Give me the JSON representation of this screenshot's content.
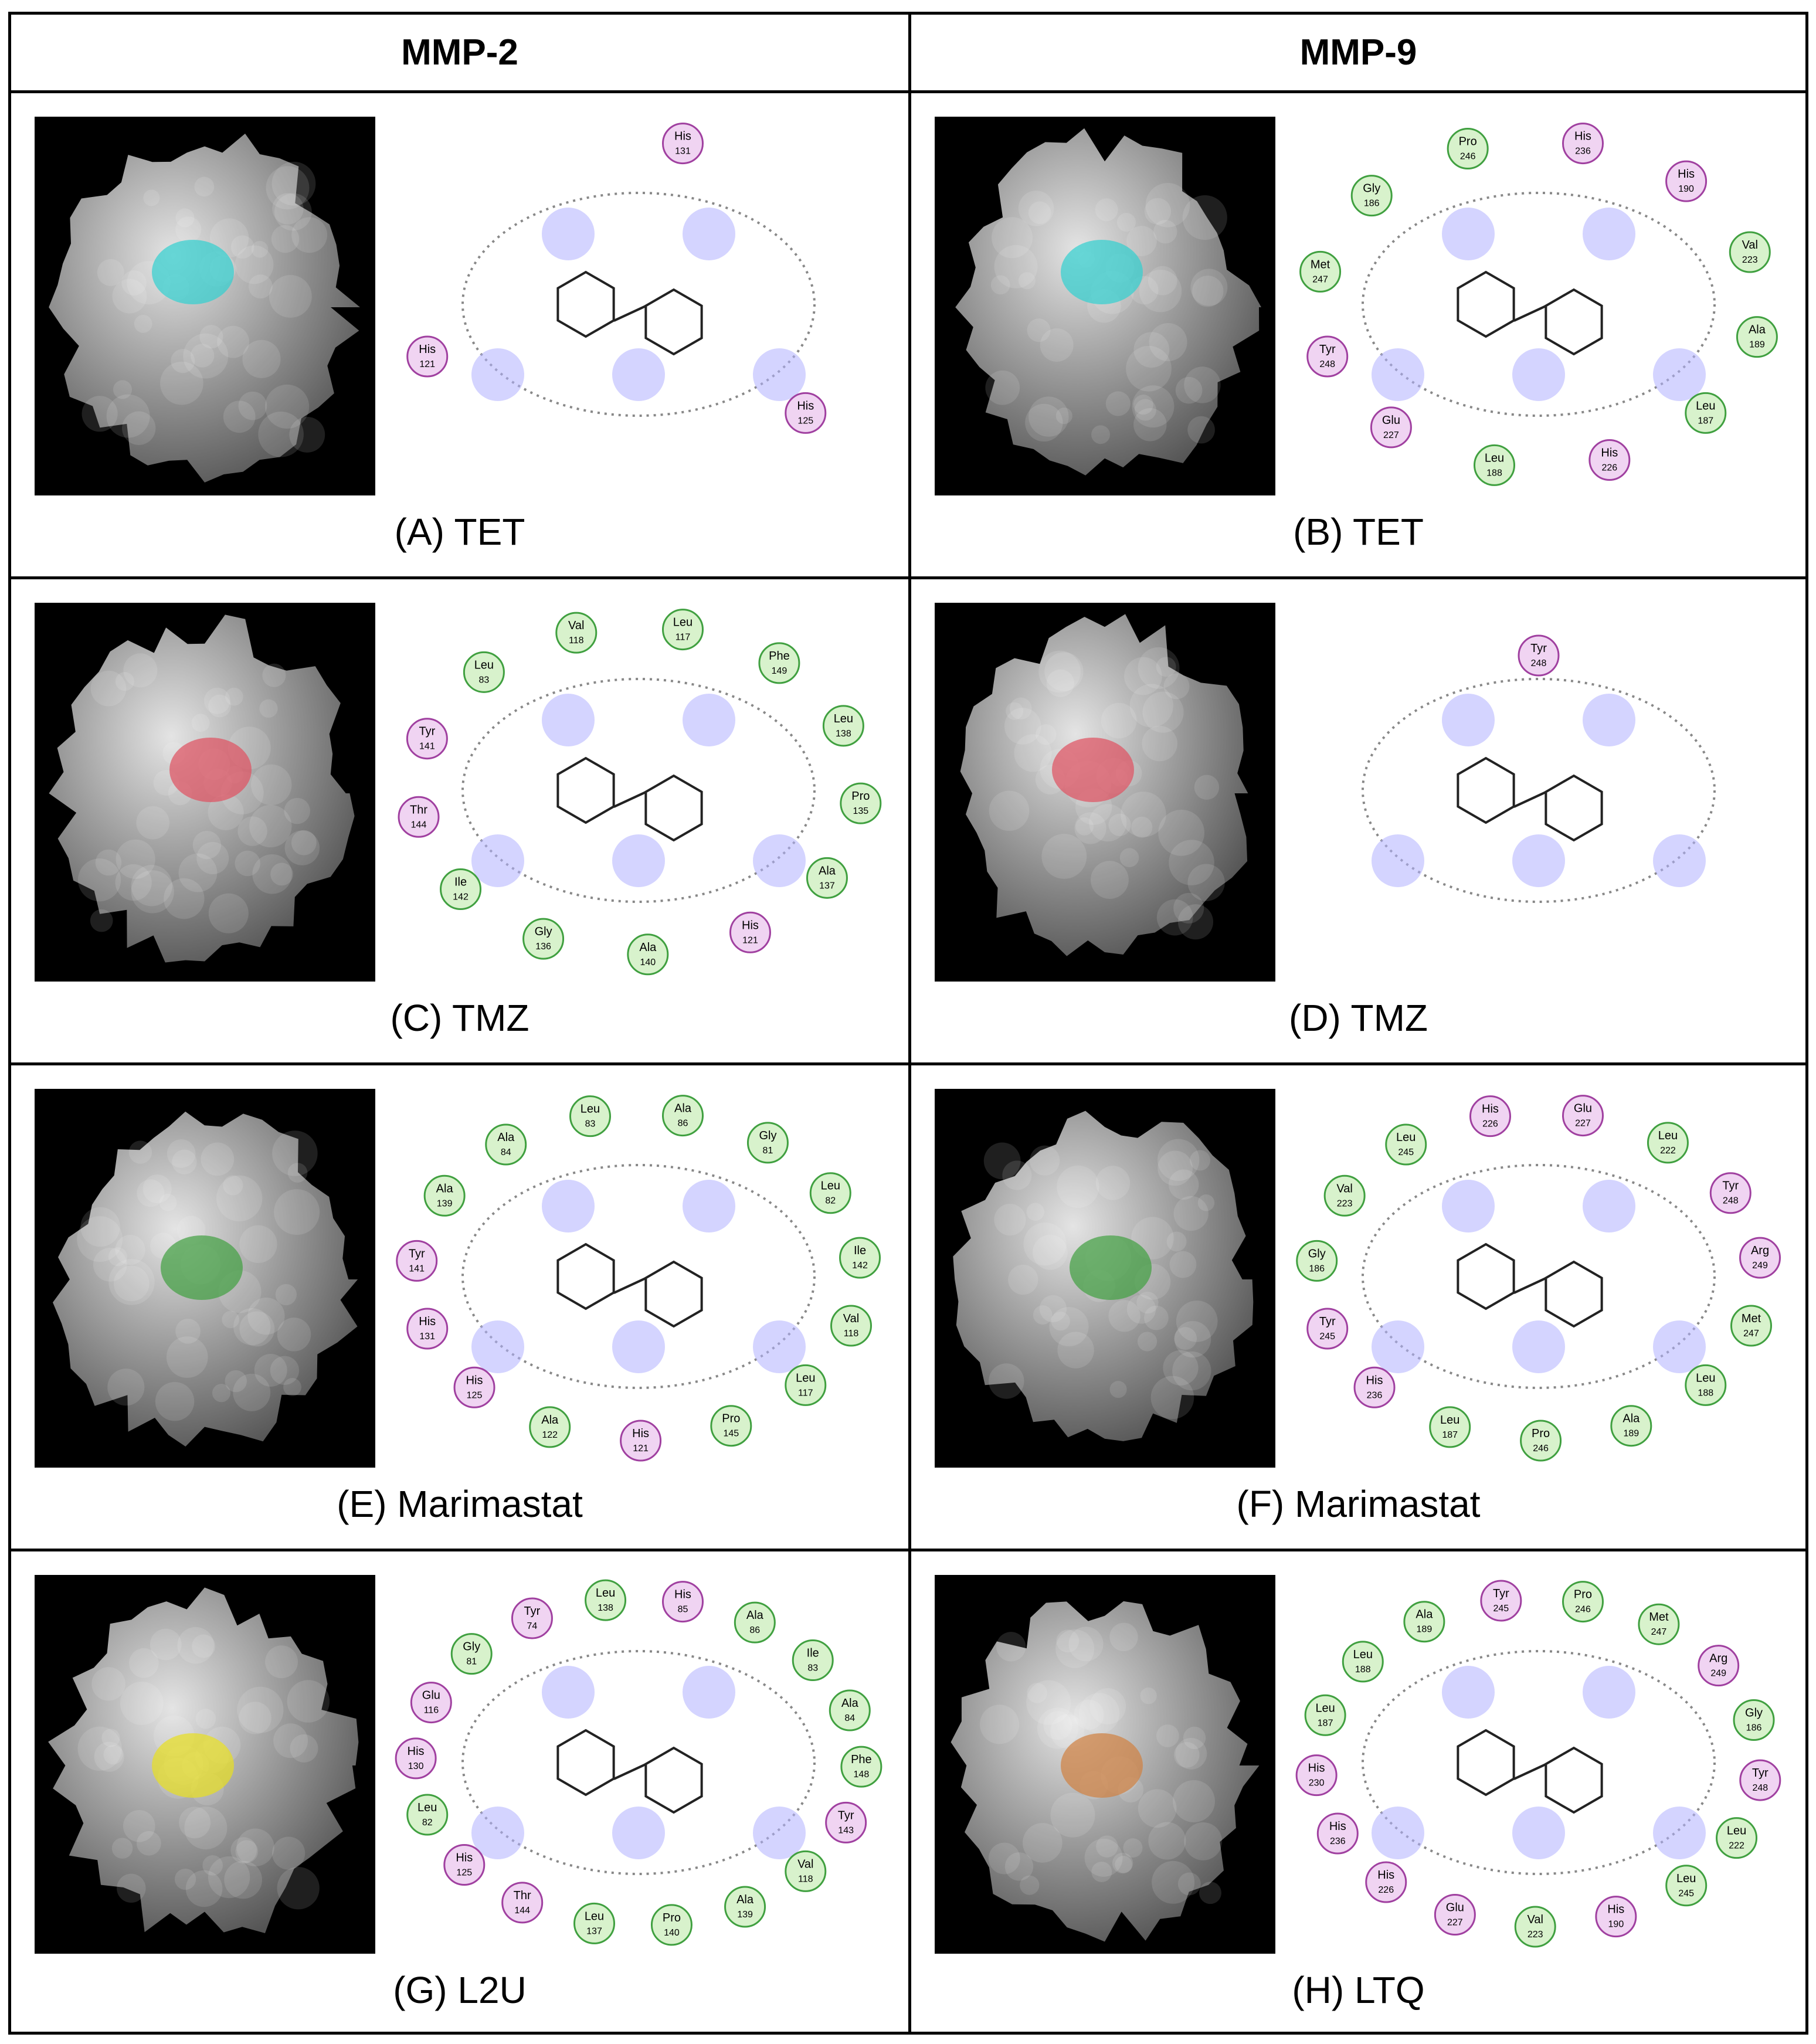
{
  "header": {
    "columns": [
      "MMP-2",
      "MMP-9"
    ]
  },
  "panels": [
    {
      "caption": "(A) TET",
      "residues": [
        {
          "name": "His",
          "number": "131"
        },
        {
          "name": "His",
          "number": "125"
        },
        {
          "name": "His",
          "number": "121"
        }
      ]
    },
    {
      "caption": "(B) TET",
      "residues": [
        {
          "name": "His",
          "number": "236"
        },
        {
          "name": "His",
          "number": "190"
        },
        {
          "name": "Val",
          "number": "223"
        },
        {
          "name": "Ala",
          "number": "189"
        },
        {
          "name": "Leu",
          "number": "187"
        },
        {
          "name": "His",
          "number": "226"
        },
        {
          "name": "Leu",
          "number": "188"
        },
        {
          "name": "Glu",
          "number": "227"
        },
        {
          "name": "Tyr",
          "number": "248"
        },
        {
          "name": "Met",
          "number": "247"
        },
        {
          "name": "Gly",
          "number": "186"
        },
        {
          "name": "Pro",
          "number": "246"
        }
      ]
    },
    {
      "caption": "(C) TMZ",
      "residues": [
        {
          "name": "Leu",
          "number": "117"
        },
        {
          "name": "Phe",
          "number": "149"
        },
        {
          "name": "Leu",
          "number": "138"
        },
        {
          "name": "Pro",
          "number": "135"
        },
        {
          "name": "Ala",
          "number": "137"
        },
        {
          "name": "His",
          "number": "121"
        },
        {
          "name": "Ala",
          "number": "140"
        },
        {
          "name": "Gly",
          "number": "136"
        },
        {
          "name": "Ile",
          "number": "142"
        },
        {
          "name": "Thr",
          "number": "144"
        },
        {
          "name": "Tyr",
          "number": "141"
        },
        {
          "name": "Leu",
          "number": "83"
        },
        {
          "name": "Val",
          "number": "118"
        }
      ]
    },
    {
      "caption": "(D) TMZ",
      "residues": [
        {
          "name": "Tyr",
          "number": "248"
        }
      ]
    },
    {
      "caption": "(E) Marimastat",
      "residues": [
        {
          "name": "Ala",
          "number": "86"
        },
        {
          "name": "Gly",
          "number": "81"
        },
        {
          "name": "Leu",
          "number": "82"
        },
        {
          "name": "Ile",
          "number": "142"
        },
        {
          "name": "Val",
          "number": "118"
        },
        {
          "name": "Leu",
          "number": "117"
        },
        {
          "name": "Pro",
          "number": "145"
        },
        {
          "name": "His",
          "number": "121"
        },
        {
          "name": "Ala",
          "number": "122"
        },
        {
          "name": "His",
          "number": "125"
        },
        {
          "name": "His",
          "number": "131"
        },
        {
          "name": "Tyr",
          "number": "141"
        },
        {
          "name": "Ala",
          "number": "139"
        },
        {
          "name": "Ala",
          "number": "84"
        },
        {
          "name": "Leu",
          "number": "83"
        }
      ]
    },
    {
      "caption": "(F) Marimastat",
      "residues": [
        {
          "name": "Glu",
          "number": "227"
        },
        {
          "name": "Leu",
          "number": "222"
        },
        {
          "name": "Tyr",
          "number": "248"
        },
        {
          "name": "Arg",
          "number": "249"
        },
        {
          "name": "Met",
          "number": "247"
        },
        {
          "name": "Leu",
          "number": "188"
        },
        {
          "name": "Ala",
          "number": "189"
        },
        {
          "name": "Pro",
          "number": "246"
        },
        {
          "name": "Leu",
          "number": "187"
        },
        {
          "name": "His",
          "number": "236"
        },
        {
          "name": "Tyr",
          "number": "245"
        },
        {
          "name": "Gly",
          "number": "186"
        },
        {
          "name": "Val",
          "number": "223"
        },
        {
          "name": "Leu",
          "number": "245"
        },
        {
          "name": "His",
          "number": "226"
        }
      ]
    },
    {
      "caption": "(G) L2U",
      "residues": [
        {
          "name": "His",
          "number": "85"
        },
        {
          "name": "Ala",
          "number": "86"
        },
        {
          "name": "Ile",
          "number": "83"
        },
        {
          "name": "Ala",
          "number": "84"
        },
        {
          "name": "Phe",
          "number": "148"
        },
        {
          "name": "Tyr",
          "number": "143"
        },
        {
          "name": "Val",
          "number": "118"
        },
        {
          "name": "Ala",
          "number": "139"
        },
        {
          "name": "Pro",
          "number": "140"
        },
        {
          "name": "Leu",
          "number": "137"
        },
        {
          "name": "Thr",
          "number": "144"
        },
        {
          "name": "His",
          "number": "125"
        },
        {
          "name": "Leu",
          "number": "82"
        },
        {
          "name": "His",
          "number": "130"
        },
        {
          "name": "Glu",
          "number": "116"
        },
        {
          "name": "Gly",
          "number": "81"
        },
        {
          "name": "Tyr",
          "number": "74"
        },
        {
          "name": "Leu",
          "number": "138"
        }
      ]
    },
    {
      "caption": "(H) LTQ",
      "residues": [
        {
          "name": "Pro",
          "number": "246"
        },
        {
          "name": "Met",
          "number": "247"
        },
        {
          "name": "Arg",
          "number": "249"
        },
        {
          "name": "Gly",
          "number": "186"
        },
        {
          "name": "Tyr",
          "number": "248"
        },
        {
          "name": "Leu",
          "number": "222"
        },
        {
          "name": "Leu",
          "number": "245"
        },
        {
          "name": "His",
          "number": "190"
        },
        {
          "name": "Val",
          "number": "223"
        },
        {
          "name": "Glu",
          "number": "227"
        },
        {
          "name": "His",
          "number": "226"
        },
        {
          "name": "His",
          "number": "236"
        },
        {
          "name": "His",
          "number": "230"
        },
        {
          "name": "Leu",
          "number": "187"
        },
        {
          "name": "Leu",
          "number": "188"
        },
        {
          "name": "Ala",
          "number": "189"
        },
        {
          "name": "Tyr",
          "number": "245"
        }
      ]
    }
  ]
}
